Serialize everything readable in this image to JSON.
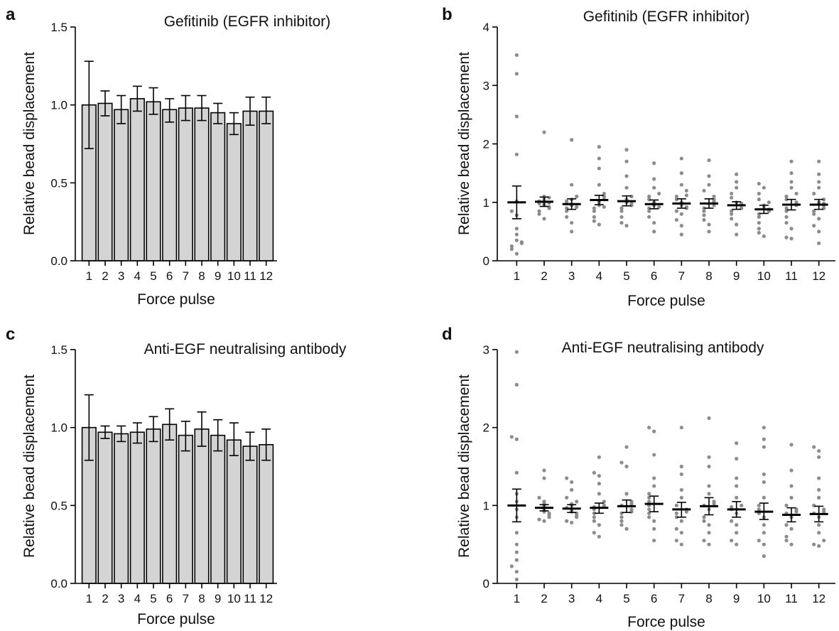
{
  "chart_data": [
    {
      "panel": "a",
      "type": "bar",
      "title": "Gefitinib (EGFR inhibitor)",
      "xlabel": "Force pulse",
      "ylabel": "Relative bead displacement",
      "categories": [
        "1",
        "2",
        "3",
        "4",
        "5",
        "6",
        "7",
        "8",
        "9",
        "10",
        "11",
        "12"
      ],
      "values": [
        1.0,
        1.01,
        0.97,
        1.04,
        1.02,
        0.97,
        0.98,
        0.98,
        0.95,
        0.88,
        0.96,
        0.96
      ],
      "err_low": [
        0.72,
        0.93,
        0.88,
        0.96,
        0.94,
        0.89,
        0.9,
        0.9,
        0.88,
        0.81,
        0.87,
        0.88
      ],
      "err_high": [
        1.28,
        1.09,
        1.06,
        1.12,
        1.11,
        1.04,
        1.06,
        1.06,
        1.01,
        0.95,
        1.05,
        1.05
      ],
      "ylim": [
        0,
        1.5
      ],
      "yticks": [
        "0.0",
        "0.5",
        "1.0",
        "1.5"
      ],
      "grid": false
    },
    {
      "panel": "b",
      "type": "scatter",
      "title": "Gefitinib (EGFR inhibitor)",
      "xlabel": "Force pulse",
      "ylabel": "Relative bead displacement",
      "categories": [
        "1",
        "2",
        "3",
        "4",
        "5",
        "6",
        "7",
        "8",
        "9",
        "10",
        "11",
        "12"
      ],
      "means": [
        1.0,
        1.01,
        0.97,
        1.04,
        1.02,
        0.97,
        0.98,
        0.98,
        0.95,
        0.88,
        0.96,
        0.96
      ],
      "err_low": [
        0.72,
        0.93,
        0.88,
        0.96,
        0.94,
        0.89,
        0.9,
        0.9,
        0.88,
        0.81,
        0.87,
        0.88
      ],
      "err_high": [
        1.28,
        1.09,
        1.06,
        1.12,
        1.11,
        1.04,
        1.06,
        1.06,
        1.01,
        0.95,
        1.05,
        1.05
      ],
      "points": [
        [
          3.52,
          3.2,
          2.47,
          1.82,
          1.02,
          0.78,
          0.45,
          0.35,
          0.3,
          0.25,
          0.2,
          0.12,
          0.32,
          0.55,
          0.85
        ],
        [
          2.2,
          1.1,
          1.05,
          1.02,
          1.0,
          0.98,
          0.97,
          0.95,
          0.92,
          0.9,
          0.85,
          0.8,
          0.72,
          1.08,
          1.0,
          0.99
        ],
        [
          2.07,
          1.3,
          1.1,
          1.02,
          0.98,
          0.95,
          0.92,
          0.85,
          0.75,
          0.65,
          0.5,
          1.05,
          0.9,
          0.97
        ],
        [
          1.95,
          1.75,
          1.58,
          1.3,
          1.15,
          1.1,
          1.05,
          1.0,
          0.95,
          0.9,
          0.85,
          0.75,
          0.68,
          0.62,
          1.02,
          0.92
        ],
        [
          1.9,
          1.7,
          1.45,
          1.25,
          1.1,
          1.05,
          1.0,
          0.95,
          0.9,
          0.85,
          0.75,
          0.65,
          0.6,
          1.02,
          0.98
        ],
        [
          1.67,
          1.4,
          1.25,
          1.15,
          1.05,
          1.0,
          0.95,
          0.9,
          0.85,
          0.75,
          0.65,
          0.5,
          1.1,
          0.92
        ],
        [
          1.75,
          1.5,
          1.3,
          1.2,
          1.1,
          1.05,
          1.0,
          0.95,
          0.9,
          0.85,
          0.8,
          0.7,
          0.6,
          0.45,
          1.12,
          0.92
        ],
        [
          1.72,
          1.45,
          1.3,
          1.2,
          1.1,
          1.05,
          1.0,
          0.95,
          0.9,
          0.85,
          0.78,
          0.7,
          0.62,
          0.5,
          1.02
        ],
        [
          1.48,
          1.35,
          1.25,
          1.15,
          1.08,
          1.0,
          0.95,
          0.9,
          0.85,
          0.8,
          0.72,
          0.62,
          0.45,
          0.98
        ],
        [
          1.32,
          1.25,
          1.15,
          1.05,
          1.0,
          0.95,
          0.9,
          0.85,
          0.8,
          0.75,
          0.65,
          0.55,
          0.42,
          0.48,
          0.88
        ],
        [
          1.7,
          1.5,
          1.35,
          1.25,
          1.15,
          1.05,
          1.0,
          0.95,
          0.85,
          0.75,
          0.65,
          0.55,
          0.4,
          0.38,
          1.1,
          0.9
        ],
        [
          1.7,
          1.48,
          1.35,
          1.25,
          1.15,
          1.05,
          1.0,
          0.95,
          0.9,
          0.85,
          0.8,
          0.72,
          0.6,
          0.5,
          0.3,
          0.98
        ]
      ],
      "ylim": [
        0,
        4
      ],
      "yticks": [
        "0",
        "1",
        "2",
        "3",
        "4"
      ],
      "grid": false
    },
    {
      "panel": "c",
      "type": "bar",
      "title": "Anti-EGF neutralising antibody",
      "xlabel": "Force pulse",
      "ylabel": "Relative bead displacement",
      "categories": [
        "1",
        "2",
        "3",
        "4",
        "5",
        "6",
        "7",
        "8",
        "9",
        "10",
        "11",
        "12"
      ],
      "values": [
        1.0,
        0.97,
        0.96,
        0.97,
        0.99,
        1.02,
        0.95,
        0.99,
        0.95,
        0.92,
        0.88,
        0.89
      ],
      "err_low": [
        0.79,
        0.93,
        0.91,
        0.9,
        0.91,
        0.92,
        0.85,
        0.88,
        0.85,
        0.82,
        0.79,
        0.79
      ],
      "err_high": [
        1.21,
        1.01,
        1.01,
        1.03,
        1.07,
        1.12,
        1.04,
        1.1,
        1.05,
        1.03,
        0.97,
        0.99
      ],
      "ylim": [
        0,
        1.5
      ],
      "yticks": [
        "0.0",
        "0.5",
        "1.0",
        "1.5"
      ],
      "grid": false
    },
    {
      "panel": "d",
      "type": "scatter",
      "title": "Anti-EGF neutralising antibody",
      "xlabel": "Force pulse",
      "ylabel": "Relative bead displacement",
      "categories": [
        "1",
        "2",
        "3",
        "4",
        "5",
        "6",
        "7",
        "8",
        "9",
        "10",
        "11",
        "12"
      ],
      "means": [
        1.0,
        0.97,
        0.96,
        0.97,
        0.99,
        1.02,
        0.95,
        0.99,
        0.95,
        0.92,
        0.88,
        0.89
      ],
      "err_low": [
        0.79,
        0.93,
        0.91,
        0.9,
        0.91,
        0.92,
        0.85,
        0.88,
        0.85,
        0.82,
        0.79,
        0.79
      ],
      "err_high": [
        1.21,
        1.01,
        1.01,
        1.03,
        1.07,
        1.12,
        1.04,
        1.1,
        1.05,
        1.03,
        0.97,
        0.99
      ],
      "points": [
        [
          2.97,
          2.55,
          1.88,
          1.85,
          1.42,
          1.15,
          1.05,
          0.95,
          0.85,
          0.65,
          0.5,
          0.4,
          0.3,
          0.22,
          0.15,
          0.05
        ],
        [
          1.45,
          1.35,
          1.1,
          1.05,
          1.0,
          0.98,
          0.96,
          0.94,
          0.92,
          0.9,
          0.88,
          0.85,
          0.82,
          0.8,
          1.02
        ],
        [
          1.35,
          1.3,
          1.2,
          1.1,
          1.05,
          1.0,
          0.97,
          0.95,
          0.92,
          0.9,
          0.87,
          0.85,
          0.8,
          0.78,
          1.02,
          0.93
        ],
        [
          1.62,
          1.42,
          1.38,
          1.28,
          1.15,
          1.05,
          1.0,
          0.95,
          0.9,
          0.85,
          0.8,
          0.75,
          0.65,
          0.6,
          0.98
        ],
        [
          1.75,
          1.55,
          1.5,
          1.15,
          1.05,
          1.0,
          0.95,
          0.9,
          0.85,
          0.8,
          0.75,
          0.7,
          1.02,
          0.92
        ],
        [
          2.0,
          1.95,
          1.65,
          1.35,
          1.25,
          1.15,
          1.1,
          1.0,
          0.95,
          0.9,
          0.85,
          0.8,
          0.7,
          0.55,
          1.05
        ],
        [
          2.0,
          1.5,
          1.4,
          1.2,
          1.1,
          1.0,
          0.95,
          0.9,
          0.85,
          0.8,
          0.7,
          0.65,
          0.55,
          0.5,
          0.92
        ],
        [
          2.12,
          1.62,
          1.5,
          1.25,
          1.15,
          1.05,
          1.0,
          0.95,
          0.85,
          0.8,
          0.75,
          0.65,
          0.55,
          0.5,
          1.02
        ],
        [
          1.8,
          1.6,
          1.35,
          1.25,
          1.1,
          1.0,
          0.95,
          0.9,
          0.8,
          0.75,
          0.65,
          0.55,
          0.5,
          0.98
        ],
        [
          2.0,
          1.85,
          1.75,
          1.4,
          1.3,
          1.1,
          1.0,
          0.9,
          0.85,
          0.75,
          0.65,
          0.55,
          0.5,
          0.35,
          0.95
        ],
        [
          1.78,
          1.45,
          1.25,
          1.1,
          1.0,
          0.95,
          0.9,
          0.85,
          0.75,
          0.7,
          0.6,
          0.55,
          0.5,
          0.92
        ],
        [
          1.75,
          1.7,
          1.62,
          1.35,
          1.2,
          1.1,
          1.0,
          0.95,
          0.9,
          0.85,
          0.75,
          0.65,
          0.55,
          0.5,
          0.48,
          0.92
        ]
      ],
      "ylim": [
        0,
        3
      ],
      "yticks": [
        "0",
        "1",
        "2",
        "3"
      ],
      "grid": false
    }
  ]
}
